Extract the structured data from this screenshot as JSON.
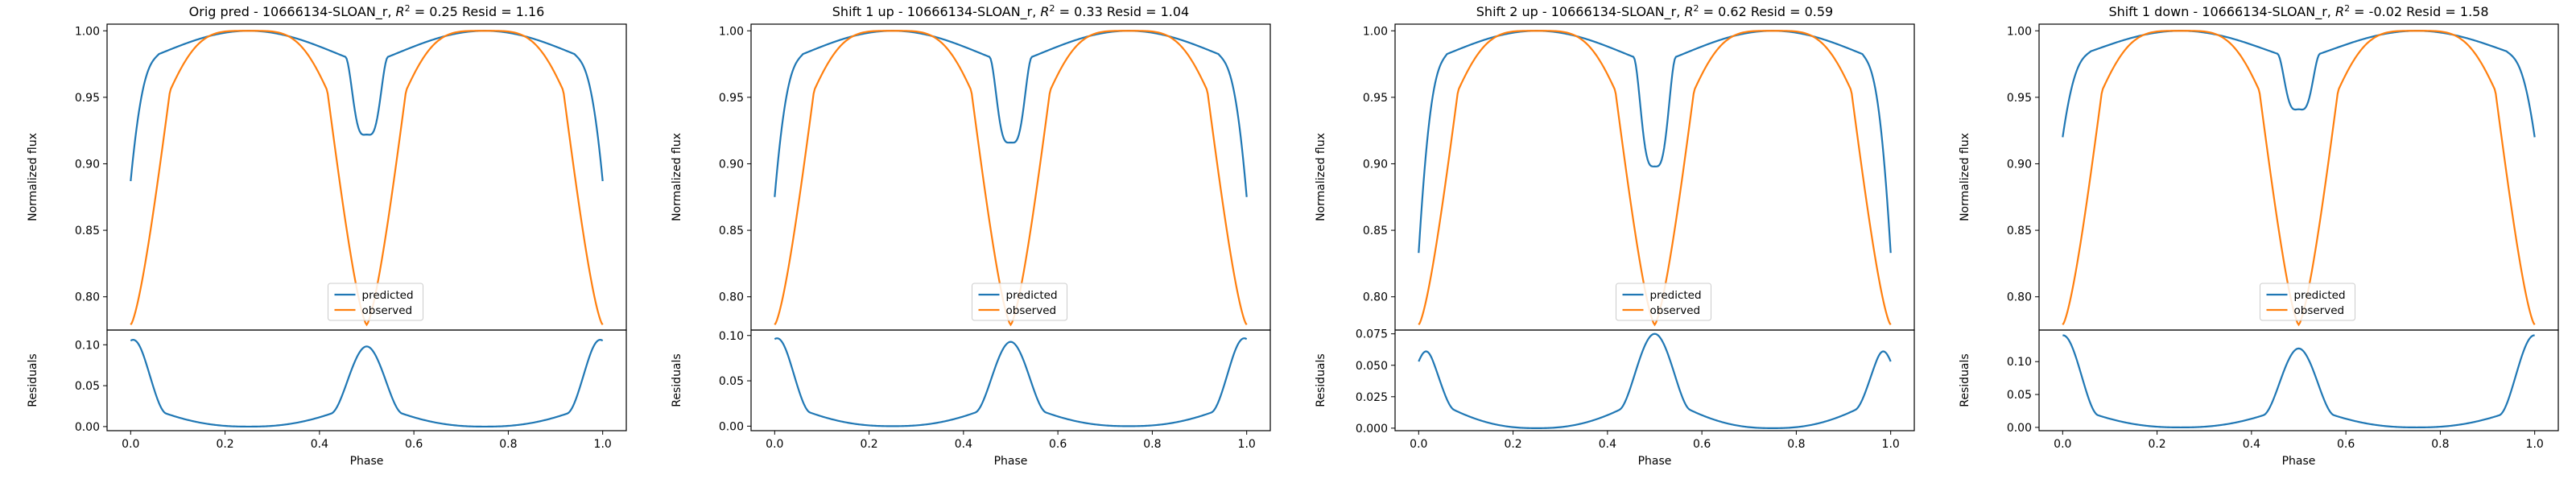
{
  "figure": {
    "colors": {
      "predicted": "#1f77b4",
      "observed": "#ff7f0e",
      "axis": "#000000"
    },
    "legend_placement": "lower center"
  },
  "chart_data": [
    {
      "type": "line",
      "title": "Orig pred - 10666134-SLOAN_r, R² = 0.25 Resid = 1.16",
      "title_parts": {
        "prefix": "Orig pred - 10666134-SLOAN_r, ",
        "r2": "0.25",
        "resid": "1.16"
      },
      "xlabel": "Phase",
      "ylabel": "Normalized flux",
      "ylim": [
        0.775,
        1.005
      ],
      "yticks": [
        "0.80",
        "0.85",
        "0.90",
        "0.95",
        "1.00"
      ],
      "ytick_values": [
        0.8,
        0.85,
        0.9,
        0.95,
        1.0
      ],
      "xticks": [
        "0.0",
        "0.2",
        "0.4",
        "0.6",
        "0.8",
        "1.0"
      ],
      "xlim": [
        -0.05,
        1.05
      ],
      "predicted": {
        "edge": 0.887,
        "shoulder": 0.97,
        "mid": 0.975,
        "peak": 1.0,
        "dip": 0.922,
        "dip_shoulder": 0.982
      },
      "series": [
        {
          "name": "predicted"
        },
        {
          "name": "observed"
        }
      ],
      "residuals": {
        "ylabel": "Residuals",
        "ylim": [
          -0.005,
          0.118
        ],
        "yticks": [
          "0.00",
          "0.05",
          "0.10"
        ],
        "ytick_values": [
          0.0,
          0.05,
          0.1
        ],
        "edge": 0.105,
        "edge_peak": 0.113,
        "center": 0.098,
        "shoulder": 0.04,
        "inner": 0.033
      }
    },
    {
      "type": "line",
      "title": "Shift 1 up - 10666134-SLOAN_r, R² = 0.33 Resid = 1.04",
      "title_parts": {
        "prefix": "Shift 1 up - 10666134-SLOAN_r, ",
        "r2": "0.33",
        "resid": "1.04"
      },
      "xlabel": "Phase",
      "ylabel": "Normalized flux",
      "ylim": [
        0.775,
        1.005
      ],
      "yticks": [
        "0.80",
        "0.85",
        "0.90",
        "0.95",
        "1.00"
      ],
      "ytick_values": [
        0.8,
        0.85,
        0.9,
        0.95,
        1.0
      ],
      "xticks": [
        "0.0",
        "0.2",
        "0.4",
        "0.6",
        "0.8",
        "1.0"
      ],
      "xlim": [
        -0.05,
        1.05
      ],
      "predicted": {
        "edge": 0.875,
        "shoulder": 0.968,
        "mid": 0.975,
        "peak": 1.0,
        "dip": 0.916,
        "dip_shoulder": 0.98
      },
      "series": [
        {
          "name": "predicted"
        },
        {
          "name": "observed"
        }
      ],
      "residuals": {
        "ylabel": "Residuals",
        "ylim": [
          -0.005,
          0.106
        ],
        "yticks": [
          "0.00",
          "0.05",
          "0.10"
        ],
        "ytick_values": [
          0.0,
          0.05,
          0.1
        ],
        "edge": 0.096,
        "edge_peak": 0.103,
        "center": 0.093,
        "shoulder": 0.037,
        "inner": 0.031
      }
    },
    {
      "type": "line",
      "title": "Shift 2 up - 10666134-SLOAN_r, R² = 0.62 Resid = 0.59",
      "title_parts": {
        "prefix": "Shift 2 up - 10666134-SLOAN_r, ",
        "r2": "0.62",
        "resid": "0.59"
      },
      "xlabel": "Phase",
      "ylabel": "Normalized flux",
      "ylim": [
        0.775,
        1.005
      ],
      "yticks": [
        "0.80",
        "0.85",
        "0.90",
        "0.95",
        "1.00"
      ],
      "ytick_values": [
        0.8,
        0.85,
        0.9,
        0.95,
        1.0
      ],
      "xticks": [
        "0.0",
        "0.2",
        "0.4",
        "0.6",
        "0.8",
        "1.0"
      ],
      "xlim": [
        -0.05,
        1.05
      ],
      "predicted": {
        "edge": 0.833,
        "shoulder": 0.962,
        "mid": 0.975,
        "peak": 1.0,
        "dip": 0.898,
        "dip_shoulder": 0.977
      },
      "series": [
        {
          "name": "predicted"
        },
        {
          "name": "observed"
        }
      ],
      "residuals": {
        "ylabel": "Residuals",
        "ylim": [
          -0.002,
          0.078
        ],
        "yticks": [
          "0.000",
          "0.025",
          "0.050",
          "0.075"
        ],
        "ytick_values": [
          0.0,
          0.025,
          0.05,
          0.075
        ],
        "edge": 0.053,
        "edge_peak": 0.07,
        "center": 0.075,
        "shoulder": 0.03,
        "inner": 0.03
      }
    },
    {
      "type": "line",
      "title": "Shift 1 down - 10666134-SLOAN_r, R² = -0.02 Resid = 1.58",
      "title_parts": {
        "prefix": "Shift 1 down - 10666134-SLOAN_r, ",
        "r2": "-0.02",
        "resid": "1.58"
      },
      "xlabel": "Phase",
      "ylabel": "Normalized flux",
      "ylim": [
        0.775,
        1.005
      ],
      "yticks": [
        "0.80",
        "0.85",
        "0.90",
        "0.95",
        "1.00"
      ],
      "ytick_values": [
        0.8,
        0.85,
        0.9,
        0.95,
        1.0
      ],
      "xticks": [
        "0.0",
        "0.2",
        "0.4",
        "0.6",
        "0.8",
        "1.0"
      ],
      "xlim": [
        -0.05,
        1.05
      ],
      "predicted": {
        "edge": 0.92,
        "shoulder": 0.976,
        "mid": 0.978,
        "peak": 1.0,
        "dip": 0.941,
        "dip_shoulder": 0.985
      },
      "series": [
        {
          "name": "predicted"
        },
        {
          "name": "observed"
        }
      ],
      "residuals": {
        "ylabel": "Residuals",
        "ylim": [
          -0.005,
          0.148
        ],
        "yticks": [
          "0.00",
          "0.05",
          "0.10"
        ],
        "ytick_values": [
          0.0,
          0.05,
          0.1
        ],
        "edge": 0.14,
        "edge_peak": 0.142,
        "center": 0.12,
        "shoulder": 0.045,
        "inner": 0.038
      }
    }
  ]
}
